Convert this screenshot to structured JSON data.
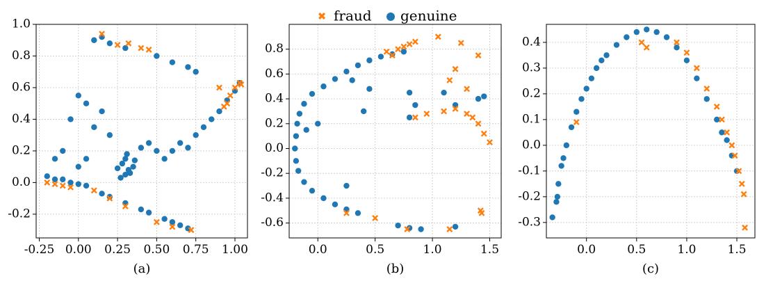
{
  "legend": {
    "entries": [
      {
        "label": "fraud",
        "marker": "x",
        "color": "#ff7f0e"
      },
      {
        "label": "genuine",
        "marker": "circle",
        "color": "#1f77b4"
      }
    ],
    "placement": "top-center"
  },
  "chart_data": [
    {
      "type": "scatter",
      "caption": "(a)",
      "xlim": [
        -0.27,
        1.08
      ],
      "ylim": [
        -0.35,
        1.0
      ],
      "xticks": [
        "-0.25",
        "0.00",
        "0.25",
        "0.50",
        "0.75",
        "1.00"
      ],
      "yticks": [
        "-0.2",
        "0.0",
        "0.2",
        "0.4",
        "0.6",
        "0.8",
        "1.0"
      ],
      "grid": true,
      "series": [
        {
          "name": "genuine",
          "color": "#1f77b4",
          "marker": "circle",
          "points": [
            [
              0.7,
              -0.29
            ],
            [
              0.6,
              -0.25
            ],
            [
              0.45,
              -0.19
            ],
            [
              0.3,
              -0.13
            ],
            [
              0.15,
              -0.07
            ],
            [
              0.0,
              -0.01
            ],
            [
              -0.1,
              0.02
            ],
            [
              -0.2,
              0.04
            ],
            [
              -0.15,
              0.02
            ],
            [
              -0.05,
              0.0
            ],
            [
              0.05,
              -0.02
            ],
            [
              0.2,
              -0.09
            ],
            [
              0.4,
              -0.17
            ],
            [
              0.55,
              -0.23
            ],
            [
              0.65,
              -0.27
            ],
            [
              0.3,
              0.05
            ],
            [
              0.32,
              0.08
            ],
            [
              0.35,
              0.1
            ],
            [
              0.28,
              0.12
            ],
            [
              0.3,
              0.15
            ],
            [
              0.33,
              0.06
            ],
            [
              0.27,
              0.03
            ],
            [
              0.36,
              0.14
            ],
            [
              0.25,
              0.09
            ],
            [
              0.31,
              0.18
            ],
            [
              0.1,
              0.9
            ],
            [
              0.15,
              0.92
            ],
            [
              0.2,
              0.88
            ],
            [
              0.3,
              0.85
            ],
            [
              0.5,
              0.8
            ],
            [
              0.6,
              0.76
            ],
            [
              0.7,
              0.73
            ],
            [
              0.75,
              0.7
            ],
            [
              0.6,
              0.2
            ],
            [
              0.65,
              0.25
            ],
            [
              0.7,
              0.22
            ],
            [
              0.75,
              0.3
            ],
            [
              0.8,
              0.35
            ],
            [
              0.85,
              0.4
            ],
            [
              0.9,
              0.45
            ],
            [
              0.95,
              0.52
            ],
            [
              1.0,
              0.58
            ],
            [
              1.03,
              0.63
            ],
            [
              0.0,
              0.55
            ],
            [
              0.05,
              0.5
            ],
            [
              -0.05,
              0.4
            ],
            [
              0.15,
              0.45
            ],
            [
              0.1,
              0.35
            ],
            [
              0.2,
              0.3
            ],
            [
              0.4,
              0.22
            ],
            [
              0.45,
              0.25
            ],
            [
              0.5,
              0.2
            ],
            [
              0.55,
              0.15
            ],
            [
              -0.1,
              0.2
            ],
            [
              -0.15,
              0.15
            ],
            [
              0.0,
              0.1
            ],
            [
              0.05,
              0.15
            ]
          ]
        },
        {
          "name": "fraud",
          "color": "#ff7f0e",
          "marker": "x",
          "points": [
            [
              0.72,
              -0.3
            ],
            [
              1.03,
              0.63
            ],
            [
              1.0,
              0.6
            ],
            [
              0.97,
              0.55
            ],
            [
              0.95,
              0.5
            ],
            [
              0.93,
              0.48
            ],
            [
              1.04,
              0.62
            ],
            [
              0.15,
              0.94
            ],
            [
              0.25,
              0.87
            ],
            [
              0.32,
              0.88
            ],
            [
              0.4,
              0.85
            ],
            [
              0.45,
              0.84
            ],
            [
              -0.2,
              0.0
            ],
            [
              -0.15,
              -0.01
            ],
            [
              -0.1,
              -0.02
            ],
            [
              0.1,
              -0.05
            ],
            [
              0.5,
              -0.25
            ],
            [
              0.9,
              0.6
            ],
            [
              -0.05,
              -0.03
            ],
            [
              0.3,
              -0.15
            ],
            [
              0.2,
              -0.1
            ],
            [
              0.6,
              -0.28
            ]
          ]
        }
      ]
    },
    {
      "type": "scatter",
      "caption": "(b)",
      "xlim": [
        -0.25,
        1.6
      ],
      "ylim": [
        -0.72,
        1.0
      ],
      "xticks": [
        "0.0",
        "0.5",
        "1.0",
        "1.5"
      ],
      "yticks": [
        "-0.6",
        "-0.4",
        "-0.2",
        "0.0",
        "0.2",
        "0.4",
        "0.6",
        "0.8"
      ],
      "grid": true,
      "series": [
        {
          "name": "genuine",
          "color": "#1f77b4",
          "marker": "circle",
          "points": [
            [
              -0.2,
              0.0
            ],
            [
              -0.19,
              0.1
            ],
            [
              -0.18,
              0.2
            ],
            [
              -0.16,
              0.28
            ],
            [
              -0.12,
              0.36
            ],
            [
              -0.05,
              0.44
            ],
            [
              0.05,
              0.5
            ],
            [
              0.15,
              0.56
            ],
            [
              0.25,
              0.62
            ],
            [
              0.35,
              0.67
            ],
            [
              0.45,
              0.71
            ],
            [
              0.55,
              0.74
            ],
            [
              0.65,
              0.76
            ],
            [
              0.75,
              0.78
            ],
            [
              -0.19,
              -0.1
            ],
            [
              -0.17,
              -0.18
            ],
            [
              -0.12,
              -0.27
            ],
            [
              -0.05,
              -0.34
            ],
            [
              0.05,
              -0.4
            ],
            [
              0.15,
              -0.45
            ],
            [
              0.25,
              -0.49
            ],
            [
              0.35,
              -0.52
            ],
            [
              0.7,
              -0.62
            ],
            [
              0.8,
              -0.64
            ],
            [
              0.9,
              -0.65
            ],
            [
              1.2,
              -0.63
            ],
            [
              0.4,
              0.3
            ],
            [
              0.8,
              0.45
            ],
            [
              0.85,
              0.35
            ],
            [
              1.1,
              0.45
            ],
            [
              1.2,
              0.35
            ],
            [
              1.4,
              0.4
            ],
            [
              1.45,
              0.42
            ],
            [
              0.8,
              0.25
            ],
            [
              0.3,
              0.55
            ],
            [
              -0.1,
              0.15
            ],
            [
              0.0,
              0.2
            ],
            [
              0.25,
              -0.3
            ],
            [
              0.45,
              0.48
            ]
          ]
        },
        {
          "name": "fraud",
          "color": "#ff7f0e",
          "marker": "x",
          "points": [
            [
              0.65,
              0.75
            ],
            [
              0.7,
              0.8
            ],
            [
              0.75,
              0.82
            ],
            [
              0.8,
              0.84
            ],
            [
              0.85,
              0.86
            ],
            [
              0.6,
              0.78
            ],
            [
              1.05,
              0.9
            ],
            [
              1.25,
              0.85
            ],
            [
              1.4,
              0.75
            ],
            [
              1.1,
              0.3
            ],
            [
              1.2,
              0.32
            ],
            [
              1.3,
              0.28
            ],
            [
              1.4,
              0.2
            ],
            [
              1.45,
              0.12
            ],
            [
              1.5,
              0.05
            ],
            [
              1.35,
              0.25
            ],
            [
              0.95,
              0.28
            ],
            [
              0.85,
              0.25
            ],
            [
              1.2,
              0.64
            ],
            [
              1.15,
              0.55
            ],
            [
              1.3,
              0.48
            ],
            [
              1.42,
              -0.5
            ],
            [
              1.43,
              -0.52
            ],
            [
              1.15,
              -0.65
            ],
            [
              0.78,
              -0.65
            ],
            [
              0.5,
              -0.56
            ],
            [
              0.25,
              -0.52
            ]
          ]
        }
      ]
    },
    {
      "type": "scatter",
      "caption": "(c)",
      "xlim": [
        -0.4,
        1.68
      ],
      "ylim": [
        -0.36,
        0.47
      ],
      "xticks": [
        "0.0",
        "0.5",
        "1.0",
        "1.5"
      ],
      "yticks": [
        "-0.3",
        "-0.2",
        "-0.1",
        "0.0",
        "0.1",
        "0.2",
        "0.3",
        "0.4"
      ],
      "grid": true,
      "series": [
        {
          "name": "genuine",
          "color": "#1f77b4",
          "marker": "circle",
          "points": [
            [
              -0.3,
              -0.22
            ],
            [
              -0.28,
              -0.15
            ],
            [
              -0.25,
              -0.08
            ],
            [
              -0.2,
              0.0
            ],
            [
              -0.15,
              0.07
            ],
            [
              -0.1,
              0.13
            ],
            [
              -0.05,
              0.18
            ],
            [
              0.0,
              0.22
            ],
            [
              0.05,
              0.26
            ],
            [
              0.1,
              0.3
            ],
            [
              0.2,
              0.35
            ],
            [
              0.3,
              0.39
            ],
            [
              0.4,
              0.42
            ],
            [
              0.5,
              0.44
            ],
            [
              0.6,
              0.45
            ],
            [
              0.7,
              0.44
            ],
            [
              0.8,
              0.42
            ],
            [
              0.9,
              0.38
            ],
            [
              1.0,
              0.33
            ],
            [
              1.1,
              0.26
            ],
            [
              1.2,
              0.18
            ],
            [
              1.3,
              0.1
            ],
            [
              1.4,
              0.02
            ],
            [
              1.45,
              -0.04
            ],
            [
              1.5,
              -0.1
            ],
            [
              -0.34,
              -0.28
            ],
            [
              -0.29,
              -0.2
            ],
            [
              -0.23,
              -0.05
            ],
            [
              0.15,
              0.33
            ],
            [
              1.35,
              0.05
            ]
          ]
        },
        {
          "name": "fraud",
          "color": "#ff7f0e",
          "marker": "x",
          "points": [
            [
              1.57,
              -0.19
            ],
            [
              1.55,
              -0.15
            ],
            [
              1.52,
              -0.1
            ],
            [
              1.48,
              -0.04
            ],
            [
              1.45,
              0.0
            ],
            [
              1.4,
              0.05
            ],
            [
              1.35,
              0.1
            ],
            [
              1.3,
              0.15
            ],
            [
              1.2,
              0.22
            ],
            [
              1.1,
              0.3
            ],
            [
              1.0,
              0.36
            ],
            [
              0.9,
              0.4
            ],
            [
              0.55,
              0.4
            ],
            [
              0.6,
              0.38
            ],
            [
              -0.1,
              0.09
            ],
            [
              1.58,
              -0.32
            ]
          ]
        }
      ]
    }
  ]
}
